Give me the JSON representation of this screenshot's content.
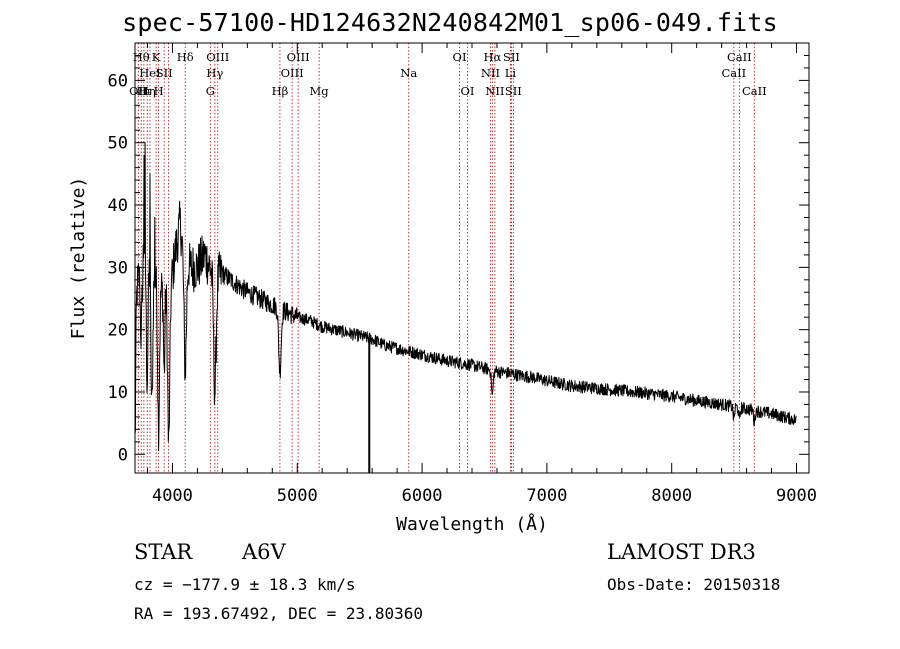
{
  "chart_data": {
    "type": "line",
    "title": "spec-57100-HD124632N240842M01_sp06-049.fits",
    "xlabel": "Wavelength (Å)",
    "ylabel": "Flux (relative)",
    "xlim": [
      3700,
      9100
    ],
    "ylim": [
      -3,
      66
    ],
    "xticks": [
      4000,
      5000,
      6000,
      7000,
      8000,
      9000
    ],
    "xtick_labels": [
      "4000",
      "5000",
      "6000",
      "7000",
      "8000",
      "9000"
    ],
    "yticks": [
      0,
      10,
      20,
      30,
      40,
      50,
      60
    ],
    "ytick_labels": [
      "0",
      "10",
      "20",
      "30",
      "40",
      "50",
      "60"
    ],
    "line_color": "#000000",
    "marker_color": "#b22222",
    "continuum": [
      {
        "x": 3700,
        "y": 24
      },
      {
        "x": 3740,
        "y": 30
      },
      {
        "x": 3780,
        "y": 34
      },
      {
        "x": 3820,
        "y": 30
      },
      {
        "x": 3860,
        "y": 28
      },
      {
        "x": 3900,
        "y": 26
      },
      {
        "x": 3940,
        "y": 27
      },
      {
        "x": 3980,
        "y": 26
      },
      {
        "x": 4020,
        "y": 32
      },
      {
        "x": 4060,
        "y": 37
      },
      {
        "x": 4100,
        "y": 32
      },
      {
        "x": 4140,
        "y": 30
      },
      {
        "x": 4200,
        "y": 30
      },
      {
        "x": 4260,
        "y": 32
      },
      {
        "x": 4300,
        "y": 30
      },
      {
        "x": 4340,
        "y": 28
      },
      {
        "x": 4400,
        "y": 29
      },
      {
        "x": 4500,
        "y": 27.5
      },
      {
        "x": 4600,
        "y": 26
      },
      {
        "x": 4700,
        "y": 25
      },
      {
        "x": 4800,
        "y": 24
      },
      {
        "x": 4900,
        "y": 23
      },
      {
        "x": 5000,
        "y": 22
      },
      {
        "x": 5100,
        "y": 21.5
      },
      {
        "x": 5200,
        "y": 20.5
      },
      {
        "x": 5300,
        "y": 20
      },
      {
        "x": 5400,
        "y": 19.5
      },
      {
        "x": 5500,
        "y": 19
      },
      {
        "x": 5600,
        "y": 18.5
      },
      {
        "x": 5700,
        "y": 17.5
      },
      {
        "x": 5800,
        "y": 17
      },
      {
        "x": 5900,
        "y": 16.5
      },
      {
        "x": 6000,
        "y": 16
      },
      {
        "x": 6100,
        "y": 15.5
      },
      {
        "x": 6200,
        "y": 15
      },
      {
        "x": 6300,
        "y": 14.7
      },
      {
        "x": 6400,
        "y": 14.3
      },
      {
        "x": 6500,
        "y": 13.8
      },
      {
        "x": 6600,
        "y": 13.3
      },
      {
        "x": 6700,
        "y": 13
      },
      {
        "x": 6800,
        "y": 12.6
      },
      {
        "x": 6900,
        "y": 12.3
      },
      {
        "x": 7000,
        "y": 11.8
      },
      {
        "x": 7200,
        "y": 11
      },
      {
        "x": 7400,
        "y": 10.6
      },
      {
        "x": 7600,
        "y": 10.2
      },
      {
        "x": 7800,
        "y": 9.8
      },
      {
        "x": 8000,
        "y": 9.3
      },
      {
        "x": 8200,
        "y": 8.6
      },
      {
        "x": 8400,
        "y": 8
      },
      {
        "x": 8600,
        "y": 7.3
      },
      {
        "x": 8800,
        "y": 6.5
      },
      {
        "x": 9000,
        "y": 5.5
      }
    ],
    "features": [
      {
        "x": 3700,
        "depth": 22,
        "width": 8
      },
      {
        "x": 3750,
        "depth": 12,
        "width": 10
      },
      {
        "x": 3797,
        "depth": 20,
        "width": 10
      },
      {
        "x": 3835,
        "depth": 22,
        "width": 10
      },
      {
        "x": 3889,
        "depth": 22,
        "width": 10
      },
      {
        "x": 3934,
        "depth": 14,
        "width": 8
      },
      {
        "x": 3970,
        "depth": 25,
        "width": 12
      },
      {
        "x": 4102,
        "depth": 18,
        "width": 14
      },
      {
        "x": 4340,
        "depth": 18,
        "width": 14
      },
      {
        "x": 4861,
        "depth": 10,
        "width": 14
      },
      {
        "x": 6563,
        "depth": 4,
        "width": 10
      },
      {
        "x": 8498,
        "depth": 2,
        "width": 8
      },
      {
        "x": 8542,
        "depth": 2,
        "width": 8
      },
      {
        "x": 8662,
        "depth": 2,
        "width": 8
      }
    ],
    "spikes": [
      {
        "x": 3772,
        "y": 48
      },
      {
        "x": 3782,
        "y": 50
      },
      {
        "x": 3820,
        "y": 45
      },
      {
        "x": 3860,
        "y": 38
      }
    ],
    "dropouts": [
      {
        "x": 5577,
        "y": -3
      }
    ],
    "lines": [
      {
        "x": 3727,
        "label": "OII",
        "row": 3
      },
      {
        "x": 3750,
        "label": "Hθ",
        "row": 1
      },
      {
        "x": 3771,
        "label": "Hι",
        "row": 3
      },
      {
        "x": 3798,
        "label": "Hη",
        "row": 3
      },
      {
        "x": 3820,
        "label": "HeI",
        "row": 2
      },
      {
        "x": 3869,
        "label": "K",
        "row": 1
      },
      {
        "x": 3889,
        "label": "H",
        "row": 3
      },
      {
        "x": 3934,
        "label": "SII",
        "row": 2
      },
      {
        "x": 3968,
        "label": "",
        "row": 0
      },
      {
        "x": 4102,
        "label": "Hδ",
        "row": 1
      },
      {
        "x": 4304,
        "label": "G",
        "row": 3
      },
      {
        "x": 4340,
        "label": "Hγ",
        "row": 2
      },
      {
        "x": 4363,
        "label": "OIII",
        "row": 1
      },
      {
        "x": 4861,
        "label": "Hβ",
        "row": 3
      },
      {
        "x": 4959,
        "label": "OIII",
        "row": 2
      },
      {
        "x": 5007,
        "label": "OIII",
        "row": 1
      },
      {
        "x": 5175,
        "label": "Mg",
        "row": 3
      },
      {
        "x": 5893,
        "label": "Na",
        "row": 2
      },
      {
        "x": 6300,
        "label": "OI",
        "row": 1
      },
      {
        "x": 6364,
        "label": "OI",
        "row": 3
      },
      {
        "x": 6548,
        "label": "NII",
        "row": 2
      },
      {
        "x": 6563,
        "label": "Hα",
        "row": 1
      },
      {
        "x": 6583,
        "label": "NII",
        "row": 3
      },
      {
        "x": 6708,
        "label": "Li",
        "row": 2
      },
      {
        "x": 6716,
        "label": "SII",
        "row": 1
      },
      {
        "x": 6731,
        "label": "SII",
        "row": 3
      },
      {
        "x": 8498,
        "label": "CaII",
        "row": 2
      },
      {
        "x": 8542,
        "label": "CaII",
        "row": 1
      },
      {
        "x": 8662,
        "label": "CaII",
        "row": 3
      }
    ]
  },
  "info": {
    "object_class": "STAR",
    "subclass": "A6V",
    "survey": "LAMOST DR3",
    "cz": "cz = −177.9 ± 18.3 km/s",
    "obs_date": "Obs-Date: 20150318",
    "coords": "RA = 193.67492, DEC =  23.80360"
  }
}
